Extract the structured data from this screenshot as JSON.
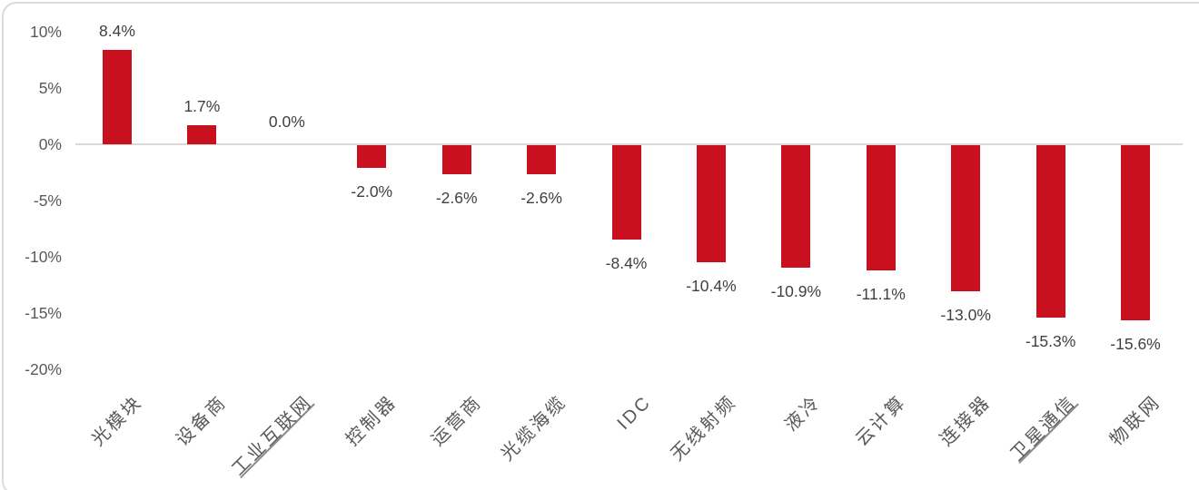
{
  "chart_data": {
    "type": "bar",
    "title": "",
    "xlabel": "",
    "ylabel": "",
    "categories": [
      "光模块",
      "设备商",
      "工业互联网",
      "控制器",
      "运营商",
      "光缆海缆",
      "IDC",
      "无线射频",
      "液冷",
      "云计算",
      "连接器",
      "卫星通信",
      "物联网"
    ],
    "values": [
      8.4,
      1.7,
      0.0,
      -2.0,
      -2.6,
      -2.6,
      -8.4,
      -10.4,
      -10.9,
      -11.1,
      -13.0,
      -15.3,
      -15.6
    ],
    "data_labels": [
      "8.4%",
      "1.7%",
      "0.0%",
      "-2.0%",
      "-2.6%",
      "-2.6%",
      "-8.4%",
      "-10.4%",
      "-10.9%",
      "-11.1%",
      "-13.0%",
      "-15.3%",
      "-15.6%"
    ],
    "underlined_categories": [
      "工业互联网",
      "卫星通信"
    ],
    "y_ticks": [
      {
        "label": "10%",
        "value": 10
      },
      {
        "label": "5%",
        "value": 5
      },
      {
        "label": "0%",
        "value": 0
      },
      {
        "label": "-5%",
        "value": -5
      },
      {
        "label": "-10%",
        "value": -10
      },
      {
        "label": "-15%",
        "value": -15
      },
      {
        "label": "-20%",
        "value": -20
      }
    ],
    "ylim": [
      -20,
      10
    ],
    "grid": false,
    "legend": null,
    "colors": {
      "bar": "#c8101e",
      "axis_line": "#d9d9d9",
      "tick_label": "#595959",
      "data_label": "#404040",
      "category_label": "#595959",
      "frame_border": "#dbdbdb",
      "background": "#ffffff"
    }
  }
}
